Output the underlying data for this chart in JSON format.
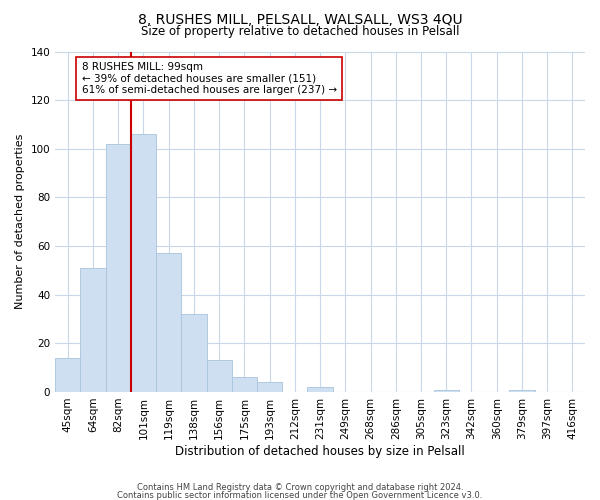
{
  "title": "8, RUSHES MILL, PELSALL, WALSALL, WS3 4QU",
  "subtitle": "Size of property relative to detached houses in Pelsall",
  "xlabel": "Distribution of detached houses by size in Pelsall",
  "ylabel": "Number of detached properties",
  "bar_labels": [
    "45sqm",
    "64sqm",
    "82sqm",
    "101sqm",
    "119sqm",
    "138sqm",
    "156sqm",
    "175sqm",
    "193sqm",
    "212sqm",
    "231sqm",
    "249sqm",
    "268sqm",
    "286sqm",
    "305sqm",
    "323sqm",
    "342sqm",
    "360sqm",
    "379sqm",
    "397sqm",
    "416sqm"
  ],
  "bar_values": [
    14,
    51,
    102,
    106,
    57,
    32,
    13,
    6,
    4,
    0,
    2,
    0,
    0,
    0,
    0,
    1,
    0,
    0,
    1,
    0,
    0
  ],
  "bar_color": "#cddff0",
  "bar_edge_color": "#a8c4dc",
  "vline_color": "#cc0000",
  "vline_x_index": 2.5,
  "annotation_text": "8 RUSHES MILL: 99sqm\n← 39% of detached houses are smaller (151)\n61% of semi-detached houses are larger (237) →",
  "annotation_box_color": "#ffffff",
  "annotation_box_edge": "#cc0000",
  "ylim": [
    0,
    140
  ],
  "yticks": [
    0,
    20,
    40,
    60,
    80,
    100,
    120,
    140
  ],
  "footer_line1": "Contains HM Land Registry data © Crown copyright and database right 2024.",
  "footer_line2": "Contains public sector information licensed under the Open Government Licence v3.0.",
  "background_color": "#ffffff",
  "grid_color": "#c8d8e8",
  "title_fontsize": 10,
  "subtitle_fontsize": 8.5,
  "ylabel_fontsize": 8,
  "xlabel_fontsize": 8.5,
  "tick_fontsize": 7.5,
  "annotation_fontsize": 7.5,
  "footer_fontsize": 6.0
}
